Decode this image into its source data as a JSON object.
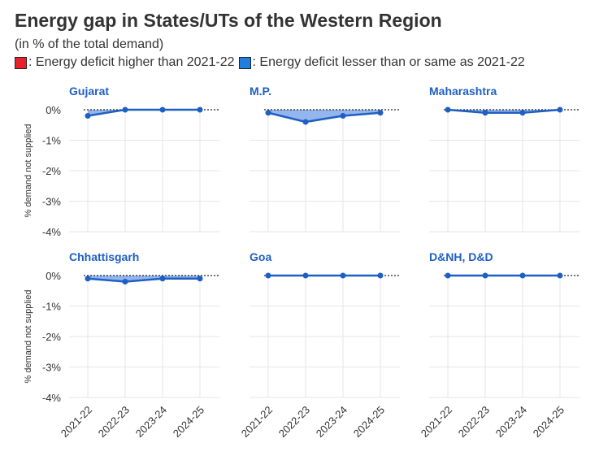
{
  "title": "Energy gap in States/UTs of the Western Region",
  "subtitle": "(in % of the total demand)",
  "legend": {
    "items": [
      {
        "label": ": Energy deficit higher than 2021-22",
        "color": "#e8202a"
      },
      {
        "label": ": Energy deficit lesser than or same as 2021-22",
        "color": "#1f7fe0"
      }
    ]
  },
  "colors": {
    "line": "#1f5fc4",
    "fill": "#6f9ee8",
    "grid": "#e6e6e6",
    "baseline": "#222222"
  },
  "chart_data": {
    "type": "area",
    "layout": "small-multiples 2x3",
    "x": [
      "2021-22",
      "2022-23",
      "2023-24",
      "2024-25"
    ],
    "ylabel": "% demand not supplied",
    "ylim": [
      -4,
      0
    ],
    "yticks": [
      0,
      -1,
      -2,
      -3,
      -4
    ],
    "ytick_labels": [
      "0%",
      "-1%",
      "-2%",
      "-3%",
      "-4%"
    ],
    "grid": true,
    "series": [
      {
        "name": "Gujarat",
        "values": [
          -0.2,
          0.0,
          0.0,
          0.0
        ]
      },
      {
        "name": "M.P.",
        "values": [
          -0.1,
          -0.4,
          -0.2,
          -0.1
        ]
      },
      {
        "name": "Maharashtra",
        "values": [
          0.0,
          -0.1,
          -0.1,
          0.0
        ]
      },
      {
        "name": "Chhattisgarh",
        "values": [
          -0.1,
          -0.2,
          -0.1,
          -0.1
        ]
      },
      {
        "name": "Goa",
        "values": [
          0.0,
          0.0,
          0.0,
          0.0
        ]
      },
      {
        "name": "D&NH, D&D",
        "values": [
          0.0,
          0.0,
          0.0,
          0.0
        ]
      }
    ]
  }
}
